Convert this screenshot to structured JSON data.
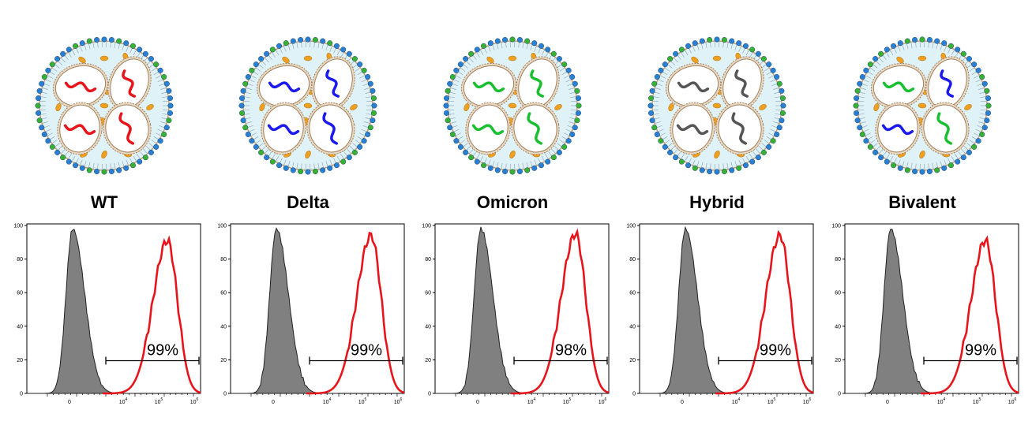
{
  "colors": {
    "WT": "#e8141b",
    "Delta": "#1a1aee",
    "Omicron": "#18c030",
    "Hybrid": "#555555",
    "negative_fill": "#808080",
    "positive_line": "#e8141b",
    "membrane_fill": "#dff2f8",
    "payload": "#f0a020"
  },
  "panels": [
    {
      "title": "WT",
      "rna_colors": [
        "WT",
        "WT",
        "WT",
        "WT"
      ],
      "gate_label": "99%"
    },
    {
      "title": "Delta",
      "rna_colors": [
        "Delta",
        "Delta",
        "Delta",
        "Delta"
      ],
      "gate_label": "99%"
    },
    {
      "title": "Omicron",
      "rna_colors": [
        "Omicron",
        "Omicron",
        "Omicron",
        "Omicron"
      ],
      "gate_label": "98%"
    },
    {
      "title": "Hybrid",
      "rna_colors": [
        "Hybrid",
        "Hybrid",
        "Hybrid",
        "Hybrid"
      ],
      "gate_label": "99%"
    },
    {
      "title": "Bivalent",
      "rna_colors": [
        "Omicron",
        "Delta",
        "Delta",
        "Omicron"
      ],
      "gate_label": "99%"
    }
  ],
  "chart_data": {
    "type": "area",
    "y_ticks": [
      "0",
      "20",
      "40",
      "60",
      "80",
      "100"
    ],
    "x_ticks": [
      "0",
      "10",
      "4",
      "10",
      "5",
      "10",
      "6"
    ],
    "x_tick_labels": [
      "0",
      "10^4",
      "10^5",
      "10^6"
    ],
    "ylim": [
      0,
      100
    ],
    "series": [
      {
        "name": "",
        "style": "negative",
        "peak_y": 98
      },
      {
        "name": "",
        "style": "positive",
        "peak_y": [
          91,
          94,
          95,
          94,
          91
        ]
      }
    ]
  }
}
